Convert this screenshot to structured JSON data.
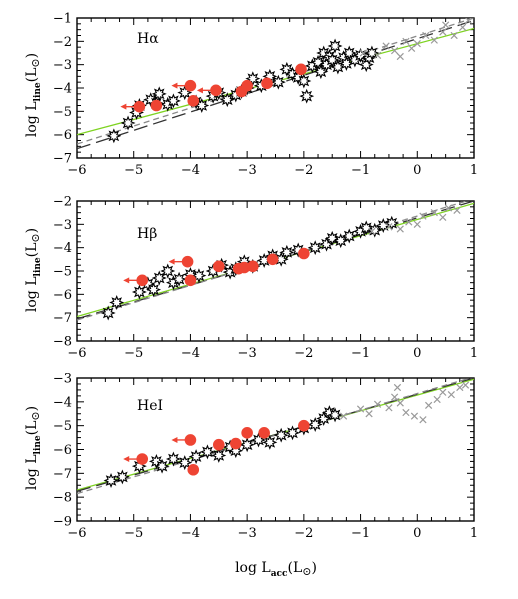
{
  "chart_data": [
    {
      "type": "scatter",
      "panel_label": "Hα",
      "ylabel_main": "log  L",
      "ylabel_sub": "line",
      "ylabel_unit": "(L",
      "ylabel_unit_end": ")",
      "xlim": [
        -6,
        1
      ],
      "ylim": [
        -7,
        -1
      ],
      "xticks": [
        "−6",
        "−5",
        "−4",
        "−3",
        "−2",
        "−1",
        "0",
        "1"
      ],
      "yticks": [
        "−7",
        "−6",
        "−5",
        "−4",
        "−3",
        "−2",
        "−1"
      ],
      "fits": [
        {
          "color": "#7ed321",
          "dash": "",
          "points": [
            [
              -6,
              -6.0
            ],
            [
              1,
              -1.45
            ]
          ]
        },
        {
          "color": "#333333",
          "dash": "14 6",
          "points": [
            [
              -6,
              -6.6
            ],
            [
              1,
              -1.1
            ]
          ]
        },
        {
          "color": "#888888",
          "dash": "6 4",
          "points": [
            [
              -6,
              -6.4
            ],
            [
              1,
              -1.0
            ]
          ]
        }
      ],
      "series": [
        {
          "marker": "star",
          "color": "#ffffff",
          "points": [
            [
              -5.35,
              -6.05
            ],
            [
              -5.1,
              -5.5
            ],
            [
              -4.95,
              -5.05
            ],
            [
              -4.9,
              -4.75
            ],
            [
              -4.7,
              -4.5
            ],
            [
              -4.6,
              -4.65
            ],
            [
              -4.55,
              -4.25
            ],
            [
              -4.4,
              -4.7
            ],
            [
              -4.3,
              -4.55
            ],
            [
              -4.1,
              -4.2
            ],
            [
              -3.9,
              -4.6
            ],
            [
              -3.8,
              -4.75
            ],
            [
              -3.6,
              -4.35
            ],
            [
              -3.5,
              -4.2
            ],
            [
              -3.35,
              -4.5
            ],
            [
              -3.2,
              -4.3
            ],
            [
              -3.1,
              -4.15
            ],
            [
              -3.0,
              -4.0
            ],
            [
              -2.9,
              -3.6
            ],
            [
              -2.75,
              -3.9
            ],
            [
              -2.6,
              -3.5
            ],
            [
              -2.45,
              -3.75
            ],
            [
              -2.3,
              -3.2
            ],
            [
              -2.2,
              -3.4
            ],
            [
              -2.1,
              -3.55
            ],
            [
              -2.0,
              -3.7
            ],
            [
              -1.95,
              -4.35
            ],
            [
              -1.85,
              -3.05
            ],
            [
              -1.75,
              -2.9
            ],
            [
              -1.7,
              -3.3
            ],
            [
              -1.65,
              -2.5
            ],
            [
              -1.6,
              -3.0
            ],
            [
              -1.55,
              -2.65
            ],
            [
              -1.5,
              -2.8
            ],
            [
              -1.45,
              -2.2
            ],
            [
              -1.4,
              -3.1
            ],
            [
              -1.3,
              -2.7
            ],
            [
              -1.25,
              -2.95
            ],
            [
              -1.2,
              -2.5
            ],
            [
              -1.1,
              -2.8
            ],
            [
              -1.0,
              -2.6
            ],
            [
              -0.9,
              -3.0
            ],
            [
              -0.85,
              -2.7
            ],
            [
              -0.8,
              -2.5
            ]
          ]
        },
        {
          "marker": "cross",
          "color": "#999999",
          "points": [
            [
              -0.95,
              -2.5
            ],
            [
              -0.7,
              -2.6
            ],
            [
              -0.55,
              -2.2
            ],
            [
              -0.4,
              -2.4
            ],
            [
              -0.3,
              -2.65
            ],
            [
              -0.2,
              -2.0
            ],
            [
              -0.1,
              -2.3
            ],
            [
              0.0,
              -2.1
            ],
            [
              0.15,
              -1.75
            ],
            [
              0.3,
              -1.95
            ],
            [
              0.45,
              -1.6
            ],
            [
              0.5,
              -1.3
            ],
            [
              0.65,
              -1.75
            ],
            [
              0.8,
              -1.4
            ],
            [
              0.9,
              -1.1
            ]
          ]
        },
        {
          "marker": "circle",
          "color": "#ee4433",
          "points": [
            [
              -4.9,
              -4.8
            ],
            [
              -4.6,
              -4.75
            ],
            [
              -4.0,
              -3.9
            ],
            [
              -3.95,
              -4.55
            ],
            [
              -3.55,
              -4.1
            ],
            [
              -3.1,
              -4.15
            ],
            [
              -3.0,
              -3.9
            ],
            [
              -2.65,
              -3.8
            ],
            [
              -2.05,
              -3.2
            ]
          ],
          "upper_limits": [
            [
              -4.9,
              -4.8
            ],
            [
              -4.0,
              -3.9
            ],
            [
              -3.55,
              -4.1
            ]
          ]
        }
      ]
    },
    {
      "type": "scatter",
      "panel_label": "Hβ",
      "ylabel_main": "log  L",
      "ylabel_sub": "line",
      "ylabel_unit": "(L",
      "ylabel_unit_end": ")",
      "xlim": [
        -6,
        1
      ],
      "ylim": [
        -8,
        -2
      ],
      "xticks": [
        "−6",
        "−5",
        "−4",
        "−3",
        "−2",
        "−1",
        "0",
        "1"
      ],
      "yticks": [
        "−8",
        "−7",
        "−6",
        "−5",
        "−4",
        "−3",
        "−2"
      ],
      "fits": [
        {
          "color": "#7ed321",
          "dash": "",
          "points": [
            [
              -6,
              -6.95
            ],
            [
              1,
              -2.1
            ]
          ]
        },
        {
          "color": "#333333",
          "dash": "14 6",
          "points": [
            [
              -6,
              -7.05
            ],
            [
              1,
              -2.0
            ]
          ]
        },
        {
          "color": "#888888",
          "dash": "6 4",
          "points": [
            [
              -6,
              -7.1
            ],
            [
              1,
              -1.9
            ]
          ]
        }
      ],
      "series": [
        {
          "marker": "star",
          "color": "#ffffff",
          "points": [
            [
              -5.45,
              -6.8
            ],
            [
              -5.3,
              -6.35
            ],
            [
              -4.9,
              -5.9
            ],
            [
              -4.75,
              -5.55
            ],
            [
              -4.65,
              -5.8
            ],
            [
              -4.55,
              -5.3
            ],
            [
              -4.4,
              -5.0
            ],
            [
              -4.3,
              -5.5
            ],
            [
              -4.2,
              -5.35
            ],
            [
              -4.0,
              -5.15
            ],
            [
              -3.85,
              -5.2
            ],
            [
              -3.6,
              -5.0
            ],
            [
              -3.45,
              -4.75
            ],
            [
              -3.3,
              -5.05
            ],
            [
              -3.2,
              -4.9
            ],
            [
              -3.05,
              -4.6
            ],
            [
              -2.9,
              -4.8
            ],
            [
              -2.7,
              -4.55
            ],
            [
              -2.55,
              -4.35
            ],
            [
              -2.4,
              -4.5
            ],
            [
              -2.3,
              -4.2
            ],
            [
              -2.1,
              -4.1
            ],
            [
              -1.8,
              -4.0
            ],
            [
              -1.6,
              -3.85
            ],
            [
              -1.5,
              -3.6
            ],
            [
              -1.35,
              -3.7
            ],
            [
              -1.2,
              -3.5
            ],
            [
              -1.0,
              -3.3
            ],
            [
              -0.9,
              -3.15
            ],
            [
              -0.75,
              -3.25
            ],
            [
              -0.6,
              -3.05
            ],
            [
              -0.45,
              -2.95
            ]
          ]
        },
        {
          "marker": "cross",
          "color": "#999999",
          "points": [
            [
              -0.8,
              -3.3
            ],
            [
              -0.5,
              -3.1
            ],
            [
              -0.3,
              -3.2
            ],
            [
              -0.15,
              -2.9
            ],
            [
              0.0,
              -3.0
            ],
            [
              0.1,
              -2.65
            ],
            [
              0.3,
              -2.5
            ],
            [
              0.45,
              -2.7
            ],
            [
              0.55,
              -2.3
            ],
            [
              0.7,
              -2.4
            ]
          ]
        },
        {
          "marker": "circle",
          "color": "#ee4433",
          "points": [
            [
              -4.85,
              -5.4
            ],
            [
              -4.0,
              -5.4
            ],
            [
              -4.05,
              -4.6
            ],
            [
              -3.5,
              -4.8
            ],
            [
              -3.15,
              -4.9
            ],
            [
              -3.05,
              -4.85
            ],
            [
              -2.9,
              -4.8
            ],
            [
              -2.55,
              -4.5
            ],
            [
              -2.0,
              -4.25
            ]
          ],
          "upper_limits": [
            [
              -4.85,
              -5.4
            ],
            [
              -4.05,
              -4.6
            ]
          ]
        }
      ]
    },
    {
      "type": "scatter",
      "panel_label": "HeI",
      "ylabel_main": "log  L",
      "ylabel_sub": "line",
      "ylabel_unit": "(L",
      "ylabel_unit_end": ")",
      "xlabel_main": "log  L",
      "xlabel_sub": "acc",
      "xlabel_unit": "(L",
      "xlabel_unit_end": ")",
      "xlim": [
        -6,
        1
      ],
      "ylim": [
        -9,
        -3
      ],
      "xticks": [
        "−6",
        "−5",
        "−4",
        "−3",
        "−2",
        "−1",
        "0",
        "1"
      ],
      "yticks": [
        "−9",
        "−8",
        "−7",
        "−6",
        "−5",
        "−4",
        "−3"
      ],
      "fits": [
        {
          "color": "#7ed321",
          "dash": "",
          "points": [
            [
              -6,
              -7.7
            ],
            [
              1,
              -3.05
            ]
          ]
        },
        {
          "color": "#333333",
          "dash": "14 6",
          "points": [
            [
              -6,
              -7.75
            ],
            [
              1,
              -3.0
            ]
          ]
        },
        {
          "color": "#888888",
          "dash": "6 4",
          "points": [
            [
              -6,
              -7.85
            ],
            [
              1,
              -2.95
            ]
          ]
        }
      ],
      "series": [
        {
          "marker": "star",
          "color": "#ffffff",
          "points": [
            [
              -5.4,
              -7.3
            ],
            [
              -5.2,
              -7.15
            ],
            [
              -4.9,
              -6.7
            ],
            [
              -4.6,
              -6.5
            ],
            [
              -4.5,
              -6.7
            ],
            [
              -4.3,
              -6.4
            ],
            [
              -4.1,
              -6.55
            ],
            [
              -3.9,
              -6.3
            ],
            [
              -3.7,
              -6.1
            ],
            [
              -3.5,
              -6.25
            ],
            [
              -3.3,
              -5.9
            ],
            [
              -3.2,
              -6.05
            ],
            [
              -3.0,
              -5.8
            ],
            [
              -2.8,
              -5.6
            ],
            [
              -2.6,
              -5.7
            ],
            [
              -2.4,
              -5.4
            ],
            [
              -2.2,
              -5.3
            ],
            [
              -2.0,
              -5.1
            ],
            [
              -1.8,
              -4.95
            ],
            [
              -1.65,
              -4.7
            ],
            [
              -1.55,
              -4.45
            ],
            [
              -1.45,
              -4.55
            ]
          ]
        },
        {
          "marker": "cross",
          "color": "#999999",
          "points": [
            [
              -1.3,
              -4.6
            ],
            [
              -1.0,
              -4.3
            ],
            [
              -0.85,
              -4.5
            ],
            [
              -0.7,
              -4.1
            ],
            [
              -0.5,
              -4.25
            ],
            [
              -0.4,
              -3.8
            ],
            [
              -0.3,
              -4.05
            ],
            [
              -0.2,
              -4.45
            ],
            [
              -0.05,
              -4.6
            ],
            [
              0.1,
              -4.75
            ],
            [
              0.2,
              -4.15
            ],
            [
              0.35,
              -3.9
            ],
            [
              0.45,
              -3.6
            ],
            [
              0.6,
              -3.7
            ],
            [
              0.75,
              -3.4
            ],
            [
              0.85,
              -3.3
            ],
            [
              -0.35,
              -3.4
            ]
          ]
        },
        {
          "marker": "circle",
          "color": "#ee4433",
          "points": [
            [
              -4.85,
              -6.4
            ],
            [
              -4.0,
              -5.6
            ],
            [
              -3.95,
              -6.85
            ],
            [
              -3.5,
              -5.8
            ],
            [
              -3.2,
              -5.75
            ],
            [
              -3.0,
              -5.3
            ],
            [
              -2.7,
              -5.3
            ],
            [
              -2.0,
              -5.0
            ]
          ],
          "upper_limits": [
            [
              -4.85,
              -6.4
            ],
            [
              -4.0,
              -5.6
            ]
          ]
        }
      ]
    }
  ]
}
